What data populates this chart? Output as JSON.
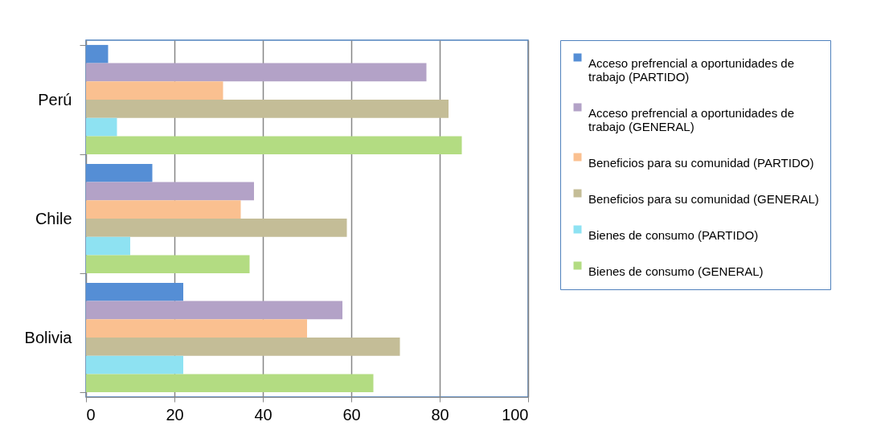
{
  "chart_data": {
    "type": "bar",
    "orientation": "horizontal",
    "categories": [
      "Perú",
      "Chile",
      "Bolivia"
    ],
    "series": [
      {
        "name": "Acceso prefrencial a oportunidades de trabajo (PARTIDO)",
        "color": "#558ed5",
        "values": [
          5,
          15,
          22
        ]
      },
      {
        "name": "Acceso prefrencial a oportunidades de trabajo (GENERAL)",
        "color": "#b3a2c7",
        "values": [
          77,
          38,
          58
        ]
      },
      {
        "name": "Beneficios para su comunidad (PARTIDO)",
        "color": "#fac090",
        "values": [
          31,
          35,
          50
        ]
      },
      {
        "name": "Beneficios para su comunidad (GENERAL)",
        "color": "#c4bd97",
        "values": [
          82,
          59,
          71
        ]
      },
      {
        "name": "Bienes de consumo (PARTIDO)",
        "color": "#8ee2f2",
        "values": [
          7,
          10,
          22
        ]
      },
      {
        "name": "Bienes de consumo (GENERAL)",
        "color": "#b3dc82",
        "values": [
          85,
          37,
          65
        ]
      }
    ],
    "xlim": [
      0,
      100
    ],
    "xticks": [
      0,
      20,
      40,
      60,
      80,
      100
    ],
    "grid": "x",
    "legend": "right"
  }
}
